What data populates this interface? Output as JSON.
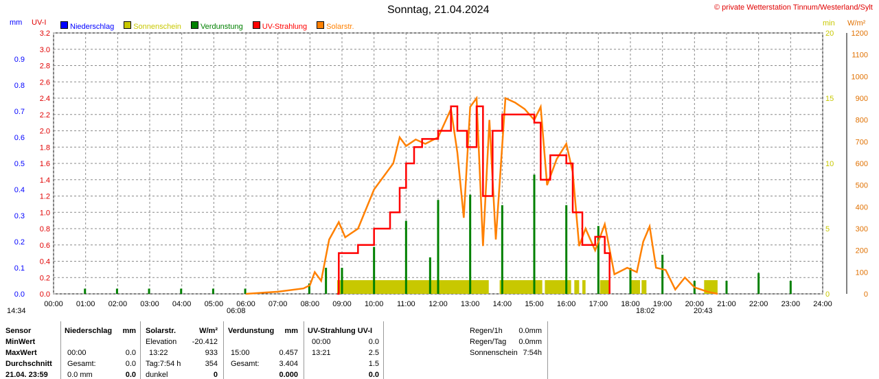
{
  "header": {
    "title": "Sonntag, 21.04.2024",
    "copyright": "© private Wetterstation Tinnum/Westerland/Sylt"
  },
  "axes": {
    "left1_unit": "mm",
    "left2_unit": "UV-I",
    "right1_unit": "min",
    "right2_unit": "W/m²"
  },
  "sun": {
    "rise": "06:08",
    "set": "20:43",
    "moon_time": "18:02",
    "current_time": "14:34"
  },
  "chart_data": {
    "type": "line",
    "title": "Sonntag, 21.04.2024",
    "legend": [
      "Niederschlag",
      "Sonnenschein",
      "Verdunstung",
      "UV-Strahlung",
      "Solarstr."
    ],
    "colors": {
      "Niederschlag": "#0000ff",
      "Sonnenschein": "#c8c800",
      "Verdunstung": "#008000",
      "UV-Strahlung": "#ff0000",
      "Solarstr.": "#ff8000"
    },
    "x_ticks": [
      "00:00",
      "01:00",
      "02:00",
      "03:00",
      "04:00",
      "05:00",
      "06:00",
      "07:00",
      "08:00",
      "09:00",
      "10:00",
      "11:00",
      "12:00",
      "13:00",
      "14:00",
      "15:00",
      "16:00",
      "17:00",
      "18:00",
      "19:00",
      "20:00",
      "21:00",
      "22:00",
      "23:00",
      "24:00"
    ],
    "mm_ticks": [
      "0.0",
      "0.1",
      "0.2",
      "0.3",
      "0.4",
      "0.5",
      "0.6",
      "0.7",
      "0.8",
      "0.9"
    ],
    "uv_ticks": [
      "0.0",
      "0.2",
      "0.4",
      "0.6",
      "0.8",
      "1.0",
      "1.2",
      "1.4",
      "1.6",
      "1.8",
      "2.0",
      "2.2",
      "2.4",
      "2.6",
      "2.8",
      "3.0",
      "3.2"
    ],
    "min_ticks": [
      "0",
      "5",
      "10",
      "15",
      "20"
    ],
    "wm2_ticks": [
      "0",
      "100",
      "200",
      "300",
      "400",
      "500",
      "600",
      "700",
      "800",
      "900",
      "1000",
      "1100",
      "1200"
    ],
    "ylim_mm": [
      0,
      1.0
    ],
    "ylim_uv": [
      0,
      3.2
    ],
    "ylim_min": [
      0,
      20
    ],
    "ylim_wm2": [
      0,
      1200
    ],
    "solar": [
      [
        6,
        0
      ],
      [
        7,
        10
      ],
      [
        7.8,
        25
      ],
      [
        8,
        40
      ],
      [
        8.15,
        100
      ],
      [
        8.35,
        60
      ],
      [
        8.6,
        250
      ],
      [
        8.9,
        330
      ],
      [
        9.1,
        260
      ],
      [
        9.5,
        300
      ],
      [
        10,
        480
      ],
      [
        10.6,
        600
      ],
      [
        10.8,
        720
      ],
      [
        11,
        680
      ],
      [
        11.3,
        710
      ],
      [
        11.6,
        690
      ],
      [
        12,
        720
      ],
      [
        12.4,
        850
      ],
      [
        12.6,
        650
      ],
      [
        12.8,
        350
      ],
      [
        13,
        860
      ],
      [
        13.2,
        900
      ],
      [
        13.4,
        220
      ],
      [
        13.6,
        800
      ],
      [
        13.8,
        250
      ],
      [
        14.1,
        900
      ],
      [
        14.4,
        880
      ],
      [
        14.7,
        850
      ],
      [
        15,
        800
      ],
      [
        15.2,
        860
      ],
      [
        15.4,
        500
      ],
      [
        15.7,
        620
      ],
      [
        16,
        690
      ],
      [
        16.2,
        560
      ],
      [
        16.4,
        220
      ],
      [
        16.6,
        300
      ],
      [
        16.9,
        200
      ],
      [
        17.2,
        320
      ],
      [
        17.5,
        90
      ],
      [
        17.9,
        120
      ],
      [
        18.2,
        100
      ],
      [
        18.4,
        240
      ],
      [
        18.6,
        310
      ],
      [
        18.8,
        120
      ],
      [
        19.1,
        110
      ],
      [
        19.4,
        20
      ],
      [
        19.7,
        75
      ],
      [
        20,
        30
      ],
      [
        20.4,
        10
      ],
      [
        20.72,
        0
      ]
    ],
    "uv": [
      [
        8.85,
        0
      ],
      [
        8.9,
        0.5
      ],
      [
        9.5,
        0.6
      ],
      [
        10,
        0.8
      ],
      [
        10.5,
        1.0
      ],
      [
        10.8,
        1.3
      ],
      [
        11,
        1.6
      ],
      [
        11.25,
        1.8
      ],
      [
        11.5,
        1.9
      ],
      [
        12,
        2.0
      ],
      [
        12.4,
        2.3
      ],
      [
        12.6,
        2.0
      ],
      [
        12.9,
        1.8
      ],
      [
        13.2,
        2.3
      ],
      [
        13.4,
        1.2
      ],
      [
        13.7,
        2.0
      ],
      [
        14,
        2.2
      ],
      [
        14.5,
        2.2
      ],
      [
        15,
        2.1
      ],
      [
        15.2,
        1.4
      ],
      [
        15.5,
        1.7
      ],
      [
        16,
        1.6
      ],
      [
        16.2,
        1.0
      ],
      [
        16.5,
        0.6
      ],
      [
        16.9,
        0.7
      ],
      [
        17.2,
        0.5
      ],
      [
        17.35,
        0
      ]
    ],
    "sunshine": [
      [
        8.85,
        13.58
      ],
      [
        13.92,
        15.25
      ],
      [
        15.33,
        16.15
      ],
      [
        16.25,
        16.4
      ],
      [
        16.5,
        16.6
      ],
      [
        17.05,
        17.35
      ],
      [
        18,
        18.3
      ],
      [
        18.35,
        18.5
      ],
      [
        20.3,
        20.72
      ]
    ],
    "evaporation": [
      [
        0.98,
        0.02
      ],
      [
        1.98,
        0.02
      ],
      [
        2.98,
        0.02
      ],
      [
        3.98,
        0.02
      ],
      [
        4.98,
        0.02
      ],
      [
        5.98,
        0.02
      ],
      [
        7.98,
        0.04
      ],
      [
        8.5,
        0.1
      ],
      [
        9,
        0.1
      ],
      [
        10,
        0.18
      ],
      [
        11,
        0.28
      ],
      [
        11.75,
        0.14
      ],
      [
        12,
        0.36
      ],
      [
        13,
        0.38
      ],
      [
        14,
        0.34
      ],
      [
        15,
        0.457
      ],
      [
        16,
        0.34
      ],
      [
        17,
        0.26
      ],
      [
        18,
        0.1
      ],
      [
        19,
        0.15
      ],
      [
        20,
        0.05
      ],
      [
        21,
        0.05
      ],
      [
        22,
        0.08
      ],
      [
        23,
        0.05
      ]
    ]
  },
  "table": {
    "headers": [
      "Sensor",
      "Niederschlag",
      "mm",
      "Solarstr.",
      "W/m²",
      "Verdunstung",
      "mm",
      "UV-Strahlung UV-I"
    ],
    "row_labels": [
      "MinWert",
      "MaxWert",
      "Durchschnitt",
      "21.04. 23:59"
    ],
    "rain": [
      [
        "",
        ""
      ],
      [
        "00:00",
        "0.0"
      ],
      [
        "Gesamt:",
        "0.0"
      ],
      [
        "0.0 mm",
        "0.0"
      ]
    ],
    "solar": [
      [
        "Elevation",
        "-20.412"
      ],
      [
        "13:22",
        "933"
      ],
      [
        "Tag:7:54 h",
        "354"
      ],
      [
        "dunkel",
        "0"
      ]
    ],
    "evap": [
      [
        "",
        ""
      ],
      [
        "15:00",
        "0.457"
      ],
      [
        "Gesamt:",
        "3.404"
      ],
      [
        "",
        "0.000"
      ]
    ],
    "uv": [
      [
        "00:00",
        "0.0"
      ],
      [
        "13:21",
        "2.5"
      ],
      [
        "",
        "1.5"
      ],
      [
        "",
        "0.0"
      ]
    ]
  },
  "summary": [
    [
      "Regen/1h",
      "0.0mm"
    ],
    [
      "Regen/Tag",
      "0.0mm"
    ],
    [
      "Sonnenschein",
      "7:54h"
    ]
  ]
}
